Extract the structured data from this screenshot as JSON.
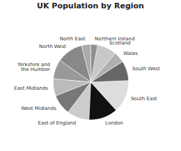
{
  "chart_data": {
    "type": "pie",
    "title": "UK Population by Region",
    "categories": [
      "North East",
      "North West",
      "Yorkshire and\nthe Humber",
      "East Midlands",
      "West Midlands",
      "East of England",
      "London",
      "South East",
      "South West",
      "Wales",
      "Scotland",
      "Northern Ireland"
    ],
    "values": [
      2657,
      7359,
      5484,
      4835,
      5731,
      6269,
      8174,
      9180,
      5601,
      3063,
      5463,
      1885
    ],
    "colors": [
      "#aaaaaa",
      "#888888",
      "#999999",
      "#bbbbbb",
      "#777777",
      "#cccccc",
      "#111111",
      "#dddddd",
      "#666666",
      "#b0b0b0",
      "#c8c8c8",
      "#909090"
    ]
  }
}
